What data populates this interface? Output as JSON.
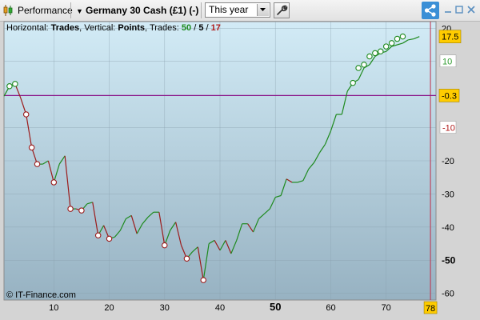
{
  "toolbar": {
    "performance_label": "Performance",
    "instrument_label": "Germany 30 Cash (£1) (-)",
    "period_value": "This year"
  },
  "chart_header": {
    "horizontal_label": "Horizontal: ",
    "horizontal_value": "Trades",
    "vertical_label": ", Vertical: ",
    "vertical_value": "Points",
    "trades_label": ", Trades: ",
    "trades_total": "50",
    "trades_sep1": " / ",
    "trades_win": "5",
    "trades_sep2": " / ",
    "trades_loss": "17"
  },
  "copyright": "© IT-Finance.com",
  "colors": {
    "up": "#1e8a1e",
    "down": "#9b1b1b",
    "zero_line": "#8b1a8b",
    "current_badge": "#ffcc00",
    "chart_bg_top": "#d2ebf6",
    "chart_bg_bottom": "#97b2c2"
  },
  "chart_data": {
    "type": "line",
    "xlim": [
      1,
      79
    ],
    "ylim": [
      -62,
      22
    ],
    "x_ticks": [
      "10",
      "20",
      "30",
      "40",
      "50",
      "60",
      "70"
    ],
    "x_tick_values": [
      10,
      20,
      30,
      40,
      50,
      60,
      70
    ],
    "x_highlight_tick": "50",
    "x_end_label": "78",
    "x_end_value": 78,
    "y_ticks": [
      {
        "v": 20,
        "label": "20"
      },
      {
        "v": 10,
        "label": "10",
        "style": "green-box"
      },
      {
        "v": -10,
        "label": "-10",
        "style": "red-box"
      },
      {
        "v": -20,
        "label": "-20"
      },
      {
        "v": -30,
        "label": "-30"
      },
      {
        "v": -40,
        "label": "-40"
      },
      {
        "v": -50,
        "label": "-50",
        "style": "bold"
      },
      {
        "v": -60,
        "label": "-60"
      }
    ],
    "current_value": 17.5,
    "current_label": "17.5",
    "zero_value": -0.3,
    "zero_label": "-0.3",
    "points": [
      [
        1,
        -0.5
      ],
      [
        2,
        2.5
      ],
      [
        3,
        3.2
      ],
      [
        4,
        -1
      ],
      [
        5,
        -6
      ],
      [
        6,
        -16
      ],
      [
        7,
        -21
      ],
      [
        8,
        -21
      ],
      [
        9,
        -20
      ],
      [
        10,
        -26.5
      ],
      [
        11,
        -21
      ],
      [
        12,
        -18.5
      ],
      [
        13,
        -34.5
      ],
      [
        14,
        -34.5
      ],
      [
        15,
        -35
      ],
      [
        16,
        -33
      ],
      [
        17,
        -32.5
      ],
      [
        18,
        -42.5
      ],
      [
        19,
        -39.5
      ],
      [
        20,
        -43.5
      ],
      [
        21,
        -43
      ],
      [
        22,
        -41
      ],
      [
        23,
        -37.5
      ],
      [
        24,
        -36.5
      ],
      [
        25,
        -42
      ],
      [
        26,
        -39
      ],
      [
        27,
        -37
      ],
      [
        28,
        -35.5
      ],
      [
        29,
        -35.5
      ],
      [
        30,
        -45.5
      ],
      [
        31,
        -41
      ],
      [
        32,
        -38.5
      ],
      [
        33,
        -45.5
      ],
      [
        34,
        -49.5
      ],
      [
        35,
        -47.5
      ],
      [
        36,
        -46
      ],
      [
        37,
        -56
      ],
      [
        38,
        -45
      ],
      [
        39,
        -44
      ],
      [
        40,
        -47
      ],
      [
        41,
        -44
      ],
      [
        42,
        -48
      ],
      [
        43,
        -44
      ],
      [
        44,
        -39
      ],
      [
        45,
        -39
      ],
      [
        46,
        -41.5
      ],
      [
        47,
        -37.5
      ],
      [
        48,
        -36
      ],
      [
        49,
        -34.5
      ],
      [
        50,
        -31
      ],
      [
        51,
        -30.5
      ],
      [
        52,
        -25.5
      ],
      [
        53,
        -26.5
      ],
      [
        54,
        -26.5
      ],
      [
        55,
        -26
      ],
      [
        56,
        -22.5
      ],
      [
        57,
        -20.5
      ],
      [
        58,
        -17.5
      ],
      [
        59,
        -15
      ],
      [
        60,
        -11
      ],
      [
        61,
        -6
      ],
      [
        62,
        -6
      ],
      [
        63,
        1
      ],
      [
        64,
        3.5
      ],
      [
        65,
        4.5
      ],
      [
        66,
        8
      ],
      [
        67,
        9
      ],
      [
        68,
        11.5
      ],
      [
        69,
        12.5
      ],
      [
        70,
        13
      ],
      [
        71,
        14.5
      ],
      [
        72,
        15
      ],
      [
        73,
        15.5
      ],
      [
        74,
        16.5
      ],
      [
        75,
        16.8
      ],
      [
        76,
        17.5
      ]
    ],
    "markers": [
      {
        "x": 2,
        "y": 2.5,
        "c": "up"
      },
      {
        "x": 3,
        "y": 3.2,
        "c": "up"
      },
      {
        "x": 5,
        "y": -6,
        "c": "down"
      },
      {
        "x": 6,
        "y": -16,
        "c": "down"
      },
      {
        "x": 7,
        "y": -21,
        "c": "down"
      },
      {
        "x": 10,
        "y": -26.5,
        "c": "down"
      },
      {
        "x": 13,
        "y": -34.5,
        "c": "down"
      },
      {
        "x": 15,
        "y": -35,
        "c": "down"
      },
      {
        "x": 18,
        "y": -42.5,
        "c": "down"
      },
      {
        "x": 20,
        "y": -43.5,
        "c": "down"
      },
      {
        "x": 30,
        "y": -45.5,
        "c": "down"
      },
      {
        "x": 34,
        "y": -49.5,
        "c": "down"
      },
      {
        "x": 37,
        "y": -56,
        "c": "down"
      },
      {
        "x": 64,
        "y": 3.5,
        "c": "up"
      },
      {
        "x": 65,
        "y": 8,
        "c": "up"
      },
      {
        "x": 66,
        "y": 9,
        "c": "up"
      },
      {
        "x": 67,
        "y": 11.5,
        "c": "up"
      },
      {
        "x": 68,
        "y": 12.5,
        "c": "up"
      },
      {
        "x": 69,
        "y": 13,
        "c": "up"
      },
      {
        "x": 70,
        "y": 14.5,
        "c": "up"
      },
      {
        "x": 71,
        "y": 15.5,
        "c": "up"
      },
      {
        "x": 72,
        "y": 16.8,
        "c": "up"
      },
      {
        "x": 73,
        "y": 17.5,
        "c": "up"
      }
    ]
  }
}
